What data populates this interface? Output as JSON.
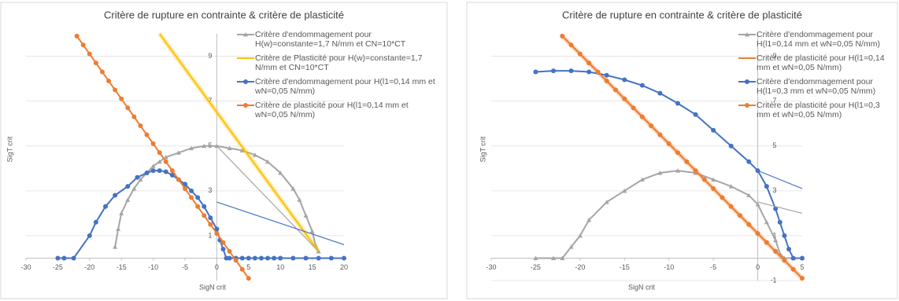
{
  "chart_data": [
    {
      "type": "line",
      "title": "Critère de rupture en contrainte & critère de plasticité",
      "x_label": "SigN crit",
      "y_label": "SigT crit",
      "xlim": [
        -30,
        20
      ],
      "xticks": [
        -30,
        -25,
        -20,
        -15,
        -10,
        -5,
        0,
        5,
        10,
        15,
        20
      ],
      "ylim": [
        -1,
        10
      ],
      "yticks": [
        1,
        3,
        5,
        7,
        9
      ],
      "grid": true,
      "series": [
        {
          "name": "Critère d'endommagement pour H(w)=constante=1,7 N/mm et CN=10*CT",
          "color": "#a5a5a5",
          "marker": "triangle",
          "x": [
            -16,
            -15.5,
            -15,
            -14,
            -13,
            -12,
            -11,
            -10,
            -9,
            -8,
            -6,
            -4,
            -2,
            0,
            2,
            4,
            6,
            8,
            10,
            12,
            13,
            14,
            15,
            15.5,
            16
          ],
          "values": [
            0.5,
            1.3,
            2,
            2.6,
            3.1,
            3.5,
            3.8,
            4.1,
            4.3,
            4.5,
            4.7,
            4.9,
            5,
            5,
            4.9,
            4.8,
            4.6,
            4.3,
            3.8,
            3.1,
            2.6,
            1.9,
            1.2,
            0.6,
            0.3
          ]
        },
        {
          "name": "Critère de Plasticité pour H(w)=constante=1,7  N/mm et CN=10*CT",
          "color": "#ffc000",
          "marker": null,
          "x": [
            -9,
            16
          ],
          "values": [
            10,
            0.3
          ]
        },
        {
          "name": "Critère d'endommagement pour H(l1=0,14 mm et wN=0,05 N/mm)",
          "color": "#4472c4",
          "marker": "circle",
          "x": [
            -25,
            -24,
            -22.5,
            -20,
            -19,
            -17.5,
            -16,
            -14,
            -12.5,
            -11,
            -10,
            -9,
            -8,
            -7,
            -6,
            -5,
            -4,
            -3,
            -2,
            -1,
            0,
            0.5,
            1,
            1.5,
            2,
            3,
            4,
            5,
            6,
            7,
            8,
            9,
            10,
            12,
            14,
            16,
            18,
            20
          ],
          "values": [
            0,
            0,
            0,
            1,
            1.6,
            2.3,
            2.8,
            3.2,
            3.6,
            3.8,
            3.9,
            3.9,
            3.85,
            3.7,
            3.5,
            3.3,
            3,
            2.7,
            2.3,
            1.8,
            1.3,
            0.8,
            0.4,
            0,
            0,
            0,
            0,
            0,
            0,
            0,
            0,
            0,
            0,
            0,
            0,
            0,
            0,
            0
          ]
        },
        {
          "name": "Critère de plasticité pour  H(l1=0,14 mm et wN=0,05 N/mm)",
          "color": "#ed7d31",
          "marker": "circle",
          "x": [
            -22,
            -21,
            -20,
            -19,
            -18,
            -17,
            -16,
            -15,
            -14,
            -13,
            -12,
            -11,
            -10,
            -9,
            -8,
            -7,
            -6,
            -5,
            -4,
            -3,
            -2,
            -1,
            0,
            1,
            2,
            3,
            4,
            5
          ],
          "values": [
            9.9,
            9.5,
            9.1,
            8.7,
            8.3,
            7.9,
            7.5,
            7.1,
            6.7,
            6.3,
            5.9,
            5.5,
            5.1,
            4.7,
            4.3,
            3.9,
            3.5,
            3.1,
            2.7,
            2.3,
            1.9,
            1.5,
            1.1,
            0.7,
            0.3,
            -0.1,
            -0.5,
            -0.9
          ]
        },
        {
          "color": "#a5a5a5",
          "marker": null,
          "x": [
            0,
            16
          ],
          "values": [
            5,
            0.3
          ]
        },
        {
          "color": "#4472c4",
          "marker": null,
          "x": [
            0,
            20
          ],
          "values": [
            2.5,
            0.6
          ]
        }
      ]
    },
    {
      "type": "line",
      "title": "Critère de rupture en contrainte & critère de plasticité",
      "x_label": "SigN crit",
      "y_label": "SigT crit",
      "xlim": [
        -30,
        5
      ],
      "xticks": [
        -30,
        -25,
        -20,
        -15,
        -10,
        -5,
        0,
        5
      ],
      "ylim": [
        -1,
        10
      ],
      "yticks": [
        -1,
        1,
        3,
        5,
        7,
        9
      ],
      "grid": true,
      "series": [
        {
          "name": "Critère d'endommagement pour H(l1=0,14 mm et wN=0,05 N/mm)",
          "color": "#a5a5a5",
          "marker": "triangle",
          "x": [
            -25,
            -23,
            -22,
            -21,
            -20,
            -19,
            -17,
            -15,
            -13,
            -11,
            -9,
            -7,
            -5,
            -3,
            -1,
            0,
            1,
            2,
            2.5,
            3,
            4,
            5
          ],
          "values": [
            0,
            0,
            0,
            0.5,
            1,
            1.7,
            2.5,
            3,
            3.5,
            3.8,
            3.9,
            3.8,
            3.5,
            3.2,
            2.8,
            2.4,
            1.6,
            0.8,
            0.2,
            0,
            0,
            0
          ]
        },
        {
          "name": "Critère de plasticité pour  H(l1=0,14 mm et wN=0,05 N/mm)",
          "color": "#ed7d31",
          "marker": null,
          "x": [
            -22,
            5
          ],
          "values": [
            9.9,
            -0.9
          ]
        },
        {
          "name": "Critère d'endommagement pour H(l1=0,3 mm et wN=0,05 N/mm)",
          "color": "#4472c4",
          "marker": "circle",
          "x": [
            -25,
            -23,
            -21,
            -19,
            -17,
            -15,
            -13,
            -11,
            -9,
            -7,
            -5,
            -3,
            -1,
            0,
            1,
            2,
            2.5,
            3,
            3.5,
            4,
            5
          ],
          "values": [
            8.3,
            8.35,
            8.35,
            8.3,
            8.15,
            7.95,
            7.7,
            7.35,
            6.9,
            6.4,
            5.7,
            5,
            4.3,
            3.9,
            3.2,
            2.2,
            1.6,
            1,
            0.4,
            0,
            0
          ]
        },
        {
          "name": "Critère de plasticité pour H(l1=0,3 mm et wN=0,05 N/mm)",
          "color": "#ed7d31",
          "marker": "circle",
          "x": [
            -22,
            -21,
            -20,
            -19,
            -18,
            -17,
            -16,
            -15,
            -14,
            -13,
            -12,
            -11,
            -10,
            -9,
            -8,
            -7,
            -6,
            -5,
            -4,
            -3,
            -2,
            -1,
            0,
            1,
            2,
            3,
            4,
            5
          ],
          "values": [
            9.9,
            9.5,
            9.1,
            8.7,
            8.3,
            7.9,
            7.5,
            7.1,
            6.7,
            6.3,
            5.9,
            5.5,
            5.1,
            4.7,
            4.3,
            3.9,
            3.5,
            3.1,
            2.7,
            2.3,
            1.9,
            1.5,
            1.1,
            0.7,
            0.3,
            -0.1,
            -0.5,
            -0.9
          ]
        },
        {
          "color": "#a5a5a5",
          "marker": null,
          "x": [
            0,
            5
          ],
          "values": [
            2.5,
            2.0
          ]
        },
        {
          "color": "#4472c4",
          "marker": null,
          "x": [
            0,
            5
          ],
          "values": [
            3.9,
            3.1
          ]
        }
      ]
    }
  ]
}
